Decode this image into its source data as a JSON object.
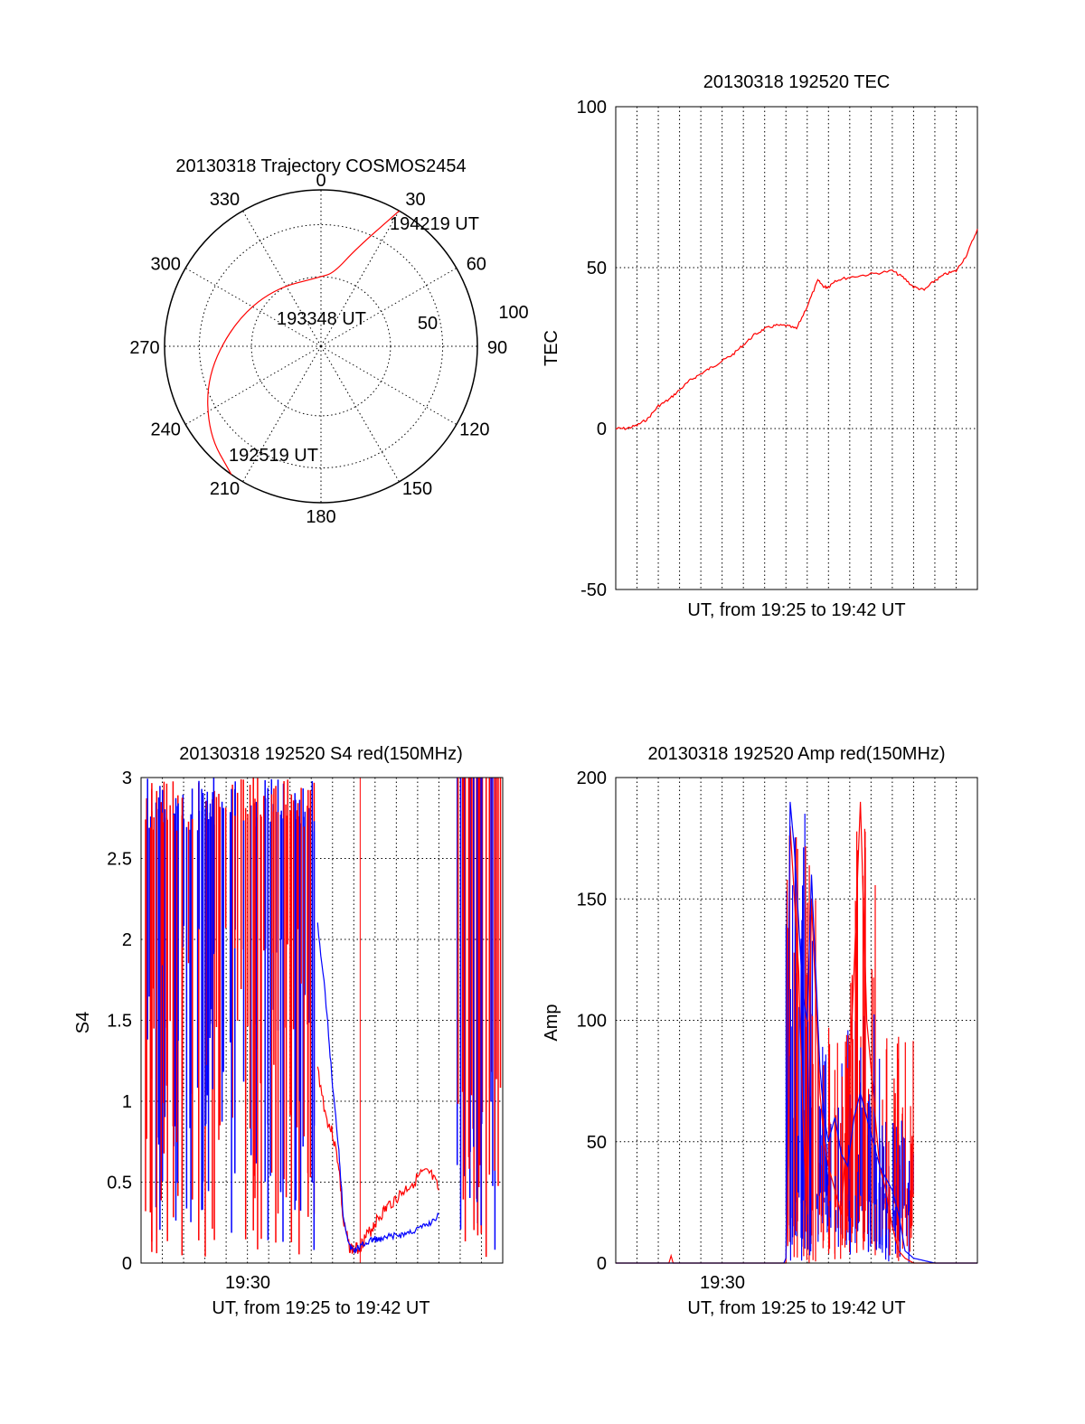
{
  "chart_data": [
    {
      "type": "polar",
      "title": "20130318 Trajectory COSMOS2454",
      "angle_labels": [
        "0",
        "30",
        "60",
        "90",
        "120",
        "150",
        "180",
        "210",
        "240",
        "270",
        "300",
        "330"
      ],
      "radial_labels": [
        "50",
        "100"
      ],
      "annotations": [
        {
          "text": "194219 UT",
          "az": 30,
          "el": 0
        },
        {
          "text": "193348 UT",
          "az": 0,
          "el": 50
        },
        {
          "text": "192519 UT",
          "az": 213,
          "el": 0
        }
      ],
      "series": [
        {
          "name": "trajectory",
          "color": "#ff0000",
          "points": [
            [
              30,
              0
            ],
            [
              20,
              30
            ],
            [
              10,
              47
            ],
            [
              0,
              50
            ],
            [
              320,
              47
            ],
            [
              285,
              38
            ],
            [
              255,
              22
            ],
            [
              232,
              8
            ],
            [
              215,
              0
            ]
          ]
        }
      ]
    },
    {
      "type": "line",
      "title": "20130318 192520 TEC",
      "xlabel": "UT, from 19:25 to 19:42 UT",
      "ylabel": "TEC",
      "ylim": [
        -50,
        100
      ],
      "yticks": [
        "100",
        "50",
        "0",
        "-50"
      ],
      "xlim": [
        0,
        17
      ],
      "grid": true,
      "series": [
        {
          "name": "TEC",
          "color": "#ff0000",
          "x": [
            0,
            0.5,
            1,
            1.5,
            2,
            2.5,
            3,
            3.5,
            4,
            4.5,
            5,
            5.5,
            6,
            6.5,
            7,
            7.5,
            8,
            8.5,
            9,
            9.5,
            9.8,
            10,
            10.3,
            11,
            12,
            13,
            13.5,
            14,
            14.5,
            15,
            15.5,
            16,
            16.5,
            17
          ],
          "y": [
            0,
            0,
            1,
            3,
            7,
            9,
            12,
            15,
            17,
            19,
            21,
            23,
            26,
            29,
            31,
            32,
            32,
            31,
            38,
            46,
            44,
            44,
            46,
            47,
            48,
            49,
            47,
            44,
            43,
            46,
            48,
            49,
            54,
            62
          ]
        }
      ]
    },
    {
      "type": "line",
      "title": "20130318 192520 S4 red(150MHz)",
      "xlabel": "UT, from 19:25 to 19:42 UT",
      "ylabel": "S4",
      "ylim": [
        0,
        3
      ],
      "yticks": [
        "3",
        "2.5",
        "2",
        "1.5",
        "1",
        "0.5",
        "0"
      ],
      "xtick_label": "19:30",
      "xlim": [
        0,
        17
      ],
      "grid": true,
      "series": [
        {
          "name": "red",
          "color": "#ff0000",
          "x": [
            8.3,
            8.7,
            9,
            9.3,
            9.5,
            9.8,
            10,
            10.3,
            10.5,
            10.8,
            11,
            11.3,
            11.6,
            12,
            12.4,
            12.8,
            13.2,
            13.6,
            14
          ],
          "y": [
            1.2,
            0.9,
            0.8,
            0.6,
            0.25,
            0.1,
            0.08,
            0.1,
            0.15,
            0.2,
            0.25,
            0.3,
            0.35,
            0.4,
            0.45,
            0.5,
            0.55,
            0.55,
            0.45
          ]
        },
        {
          "name": "blue",
          "color": "#0000ff",
          "x": [
            8.3,
            8.7,
            9,
            9.3,
            9.5,
            9.8,
            10,
            10.3,
            10.5,
            10.8,
            11,
            11.3,
            11.6,
            12,
            12.4,
            12.8,
            13.2,
            13.6,
            14
          ],
          "y": [
            2.1,
            1.6,
            1.1,
            0.7,
            0.3,
            0.1,
            0.08,
            0.1,
            0.12,
            0.14,
            0.15,
            0.14,
            0.16,
            0.17,
            0.18,
            0.2,
            0.22,
            0.25,
            0.3
          ]
        }
      ]
    },
    {
      "type": "line",
      "title": "20130318 192520 Amp red(150MHz)",
      "xlabel": "UT, from 19:25 to 19:42 UT",
      "ylabel": "Amp",
      "ylim": [
        0,
        200
      ],
      "yticks": [
        "200",
        "150",
        "100",
        "50",
        "0"
      ],
      "xtick_label": "19:30",
      "xlim": [
        0,
        17
      ],
      "grid": true,
      "series": [
        {
          "name": "red",
          "color": "#ff0000",
          "x": [
            0,
            2.5,
            2.6,
            2.7,
            8,
            8.1,
            8.2,
            8.4,
            8.6,
            8.8,
            9,
            9.2,
            9.4,
            9.6,
            9.8,
            10,
            10.3,
            10.6,
            10.9,
            11.2,
            11.5,
            11.8,
            12.1,
            12.4,
            12.7,
            13,
            13.3,
            13.6,
            14,
            14.5,
            15,
            17
          ],
          "y": [
            0,
            0,
            3,
            0,
            0,
            40,
            180,
            150,
            120,
            60,
            20,
            150,
            110,
            70,
            50,
            40,
            30,
            20,
            60,
            120,
            190,
            100,
            70,
            40,
            30,
            15,
            5,
            2,
            0,
            0,
            0,
            0
          ]
        },
        {
          "name": "blue",
          "color": "#0000ff",
          "x": [
            0,
            7.9,
            8,
            8.1,
            8.2,
            8.4,
            8.6,
            8.8,
            9,
            9.2,
            9.4,
            9.6,
            9.8,
            10,
            10.3,
            10.6,
            10.9,
            11.2,
            11.5,
            11.8,
            12.1,
            12.4,
            12.7,
            13,
            13.3,
            13.6,
            14,
            14.5,
            15,
            17
          ],
          "y": [
            0,
            0,
            2,
            100,
            190,
            170,
            140,
            110,
            100,
            160,
            120,
            80,
            60,
            50,
            60,
            45,
            40,
            60,
            70,
            60,
            50,
            40,
            35,
            30,
            20,
            5,
            2,
            1,
            0,
            0
          ]
        }
      ]
    }
  ]
}
